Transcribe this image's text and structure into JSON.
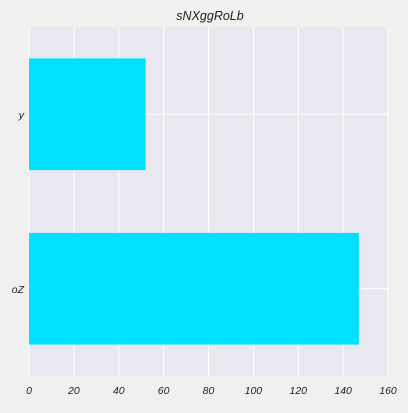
{
  "chart_data": {
    "type": "bar",
    "orientation": "horizontal",
    "title": "sNXggRoLb",
    "xlabel": "",
    "ylabel": "",
    "categories": [
      "y",
      "oZ"
    ],
    "values": [
      52,
      147
    ],
    "xlim": [
      0,
      160
    ],
    "xticks": [
      0,
      20,
      40,
      60,
      80,
      100,
      120,
      140,
      160
    ],
    "grid": true,
    "legend": "none",
    "colors": {
      "bar": "#00e0ff",
      "plot_background": "#e8e8f0",
      "figure_background": "#f0f0f0",
      "grid": "#ffffff"
    }
  }
}
